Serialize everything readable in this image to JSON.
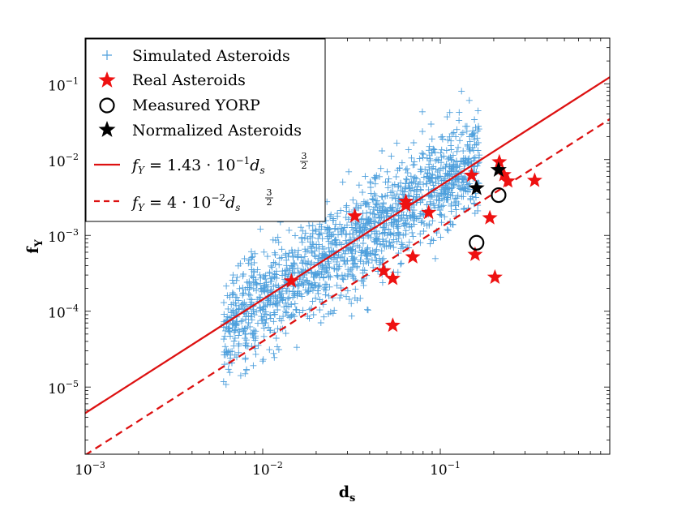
{
  "chart_data": {
    "type": "scatter",
    "x_scale": "log",
    "y_scale": "log",
    "xlim": [
      0.001,
      0.9
    ],
    "ylim": [
      1.3e-06,
      0.4
    ],
    "xlabel": {
      "main": "d",
      "sub": "s"
    },
    "ylabel": {
      "main": "f",
      "sub": "Y"
    },
    "x_ticks": [
      {
        "value": 0.001,
        "base": "10",
        "exp": "−3"
      },
      {
        "value": 0.01,
        "base": "10",
        "exp": "−2"
      },
      {
        "value": 0.1,
        "base": "10",
        "exp": "−1"
      }
    ],
    "y_ticks": [
      {
        "value": 1e-05,
        "base": "10",
        "exp": "−5"
      },
      {
        "value": 0.0001,
        "base": "10",
        "exp": "−4"
      },
      {
        "value": 0.001,
        "base": "10",
        "exp": "−3"
      },
      {
        "value": 0.01,
        "base": "10",
        "exp": "−2"
      },
      {
        "value": 0.1,
        "base": "10",
        "exp": "−1"
      }
    ],
    "legend": {
      "position": "top-left",
      "entries": [
        {
          "label": "Simulated Asteroids",
          "marker": "plus",
          "color": "#4d9fdc"
        },
        {
          "label": "Real Asteroids",
          "marker": "star",
          "color": "#ee1111"
        },
        {
          "label": "Measured YORP",
          "marker": "circle",
          "color": "#000000"
        },
        {
          "label": "Normalized Asteroids",
          "marker": "star",
          "color": "#000000"
        },
        {
          "marker": "solid-line",
          "color": "#dd1111",
          "f": "f",
          "sub": "Y",
          "eq": " = 1.43 · 10",
          "exp": "−1",
          "var": "d",
          "vsub": "s",
          "num": "3",
          "den": "2"
        },
        {
          "marker": "dashed-line",
          "color": "#dd1111",
          "f": "f",
          "sub": "Y",
          "eq": " = 4 · 10",
          "exp": "−2",
          "var": "d",
          "vsub": "s",
          "num": "3",
          "den": "2"
        }
      ]
    },
    "series": [
      {
        "name": "Simulated Asteroids",
        "kind": "scatter-cloud",
        "color": "#4d9fdc",
        "count": 1600,
        "seed": 7,
        "log10_x_range": [
          -2.22,
          -0.78
        ],
        "log10_fy_coefficient": -0.85,
        "log10_scatter_sd": 0.33,
        "fit_exponent": 1.5,
        "log10_y_floor": -5.4,
        "log10_y_ceiling": -0.55
      },
      {
        "name": "Real Asteroids",
        "kind": "points",
        "color": "#ee1111",
        "points": [
          {
            "x": 0.0145,
            "y": 0.00025
          },
          {
            "x": 0.033,
            "y": 0.0018
          },
          {
            "x": 0.048,
            "y": 0.00034
          },
          {
            "x": 0.054,
            "y": 0.00027
          },
          {
            "x": 0.054,
            "y": 6.5e-05
          },
          {
            "x": 0.064,
            "y": 0.0028
          },
          {
            "x": 0.064,
            "y": 0.0025
          },
          {
            "x": 0.07,
            "y": 0.00052
          },
          {
            "x": 0.086,
            "y": 0.002
          },
          {
            "x": 0.15,
            "y": 0.0062
          },
          {
            "x": 0.157,
            "y": 0.00056
          },
          {
            "x": 0.19,
            "y": 0.0017
          },
          {
            "x": 0.203,
            "y": 0.00028
          },
          {
            "x": 0.215,
            "y": 0.0093
          },
          {
            "x": 0.228,
            "y": 0.0063
          },
          {
            "x": 0.24,
            "y": 0.0052
          },
          {
            "x": 0.34,
            "y": 0.0053
          }
        ]
      },
      {
        "name": "Measured YORP",
        "kind": "points",
        "color": "#000000",
        "points": [
          {
            "x": 0.16,
            "y": 0.0008
          },
          {
            "x": 0.213,
            "y": 0.0034
          }
        ]
      },
      {
        "name": "Normalized Asteroids",
        "kind": "points",
        "color": "#000000",
        "points": [
          {
            "x": 0.16,
            "y": 0.0042
          },
          {
            "x": 0.213,
            "y": 0.0073
          }
        ]
      },
      {
        "name": "fit-solid",
        "kind": "line",
        "color": "#dd1111",
        "coefficient": 0.143,
        "exponent": 1.5,
        "dashed": false
      },
      {
        "name": "fit-dashed",
        "kind": "line",
        "color": "#dd1111",
        "coefficient": 0.04,
        "exponent": 1.5,
        "dashed": true
      }
    ]
  }
}
